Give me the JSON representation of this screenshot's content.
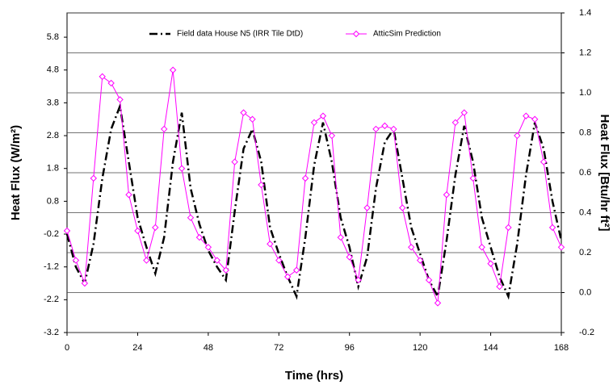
{
  "chart_data": {
    "type": "line",
    "legend": "top",
    "xlabel": "Time (hrs)",
    "ylabel": "Heat Flux (W/m²)",
    "y2label": "Heat Flux [Btu/hr ft²]",
    "x": [
      0,
      3,
      6,
      9,
      12,
      15,
      18,
      21,
      24,
      27,
      30,
      33,
      36,
      39,
      42,
      45,
      48,
      51,
      54,
      57,
      60,
      63,
      66,
      69,
      72,
      75,
      78,
      81,
      84,
      87,
      90,
      93,
      96,
      99,
      102,
      105,
      108,
      111,
      114,
      117,
      120,
      123,
      126,
      129,
      132,
      135,
      138,
      141,
      144,
      147,
      150,
      153,
      156,
      159,
      162,
      165,
      168
    ],
    "series": [
      {
        "name": "Field data House N5 (IRR Tile DtD)",
        "color": "#000000",
        "style": "dashdot",
        "values": [
          -0.2,
          -1.2,
          -1.7,
          -0.5,
          1.5,
          3.0,
          3.7,
          2.0,
          0.3,
          -0.6,
          -1.4,
          -0.3,
          2.0,
          3.5,
          1.2,
          0.1,
          -0.7,
          -1.2,
          -1.6,
          0.5,
          2.4,
          3.0,
          2.0,
          0.0,
          -0.8,
          -1.5,
          -2.1,
          -0.3,
          1.9,
          3.2,
          2.0,
          0.3,
          -0.6,
          -1.8,
          -0.9,
          1.2,
          2.6,
          3.0,
          1.5,
          0.0,
          -0.8,
          -1.6,
          -2.1,
          -0.4,
          1.6,
          3.1,
          2.0,
          0.3,
          -0.6,
          -1.5,
          -2.1,
          -0.5,
          1.6,
          3.2,
          2.4,
          0.8,
          -0.4
        ]
      },
      {
        "name": "AtticSim Prediction",
        "color": "#ff00ff",
        "style": "marker",
        "values": [
          -0.1,
          -1.0,
          -1.7,
          1.5,
          4.6,
          4.4,
          3.9,
          1.0,
          -0.1,
          -1.0,
          0.0,
          3.0,
          4.8,
          1.8,
          0.3,
          -0.3,
          -0.6,
          -1.0,
          -1.3,
          2.0,
          3.5,
          3.3,
          1.3,
          -0.5,
          -1.0,
          -1.5,
          -1.3,
          1.5,
          3.2,
          3.4,
          2.8,
          -0.3,
          -0.9,
          -1.6,
          0.6,
          3.0,
          3.1,
          3.0,
          0.6,
          -0.6,
          -1.0,
          -1.6,
          -2.3,
          1.0,
          3.2,
          3.5,
          1.5,
          -0.6,
          -1.1,
          -1.8,
          0.0,
          2.8,
          3.4,
          3.3,
          2.0,
          0.0,
          -0.6
        ]
      }
    ],
    "xlim": [
      0,
      168
    ],
    "xticks": [
      0,
      24,
      48,
      72,
      96,
      120,
      144,
      168
    ],
    "ylim": [
      -3.2,
      6.54
    ],
    "yticks": [
      -3.2,
      -2.2,
      -1.2,
      -0.2,
      0.8,
      1.8,
      2.8,
      3.8,
      4.8,
      5.8
    ],
    "y2lim": [
      -0.2,
      1.4
    ],
    "y2ticks": [
      -0.2,
      {
        "value": 0,
        "label": "0.0"
      },
      0.2,
      0.4,
      0.6,
      0.8,
      {
        "value": 1,
        "label": "1.0"
      },
      1.2,
      1.4
    ],
    "grid": "y2"
  }
}
